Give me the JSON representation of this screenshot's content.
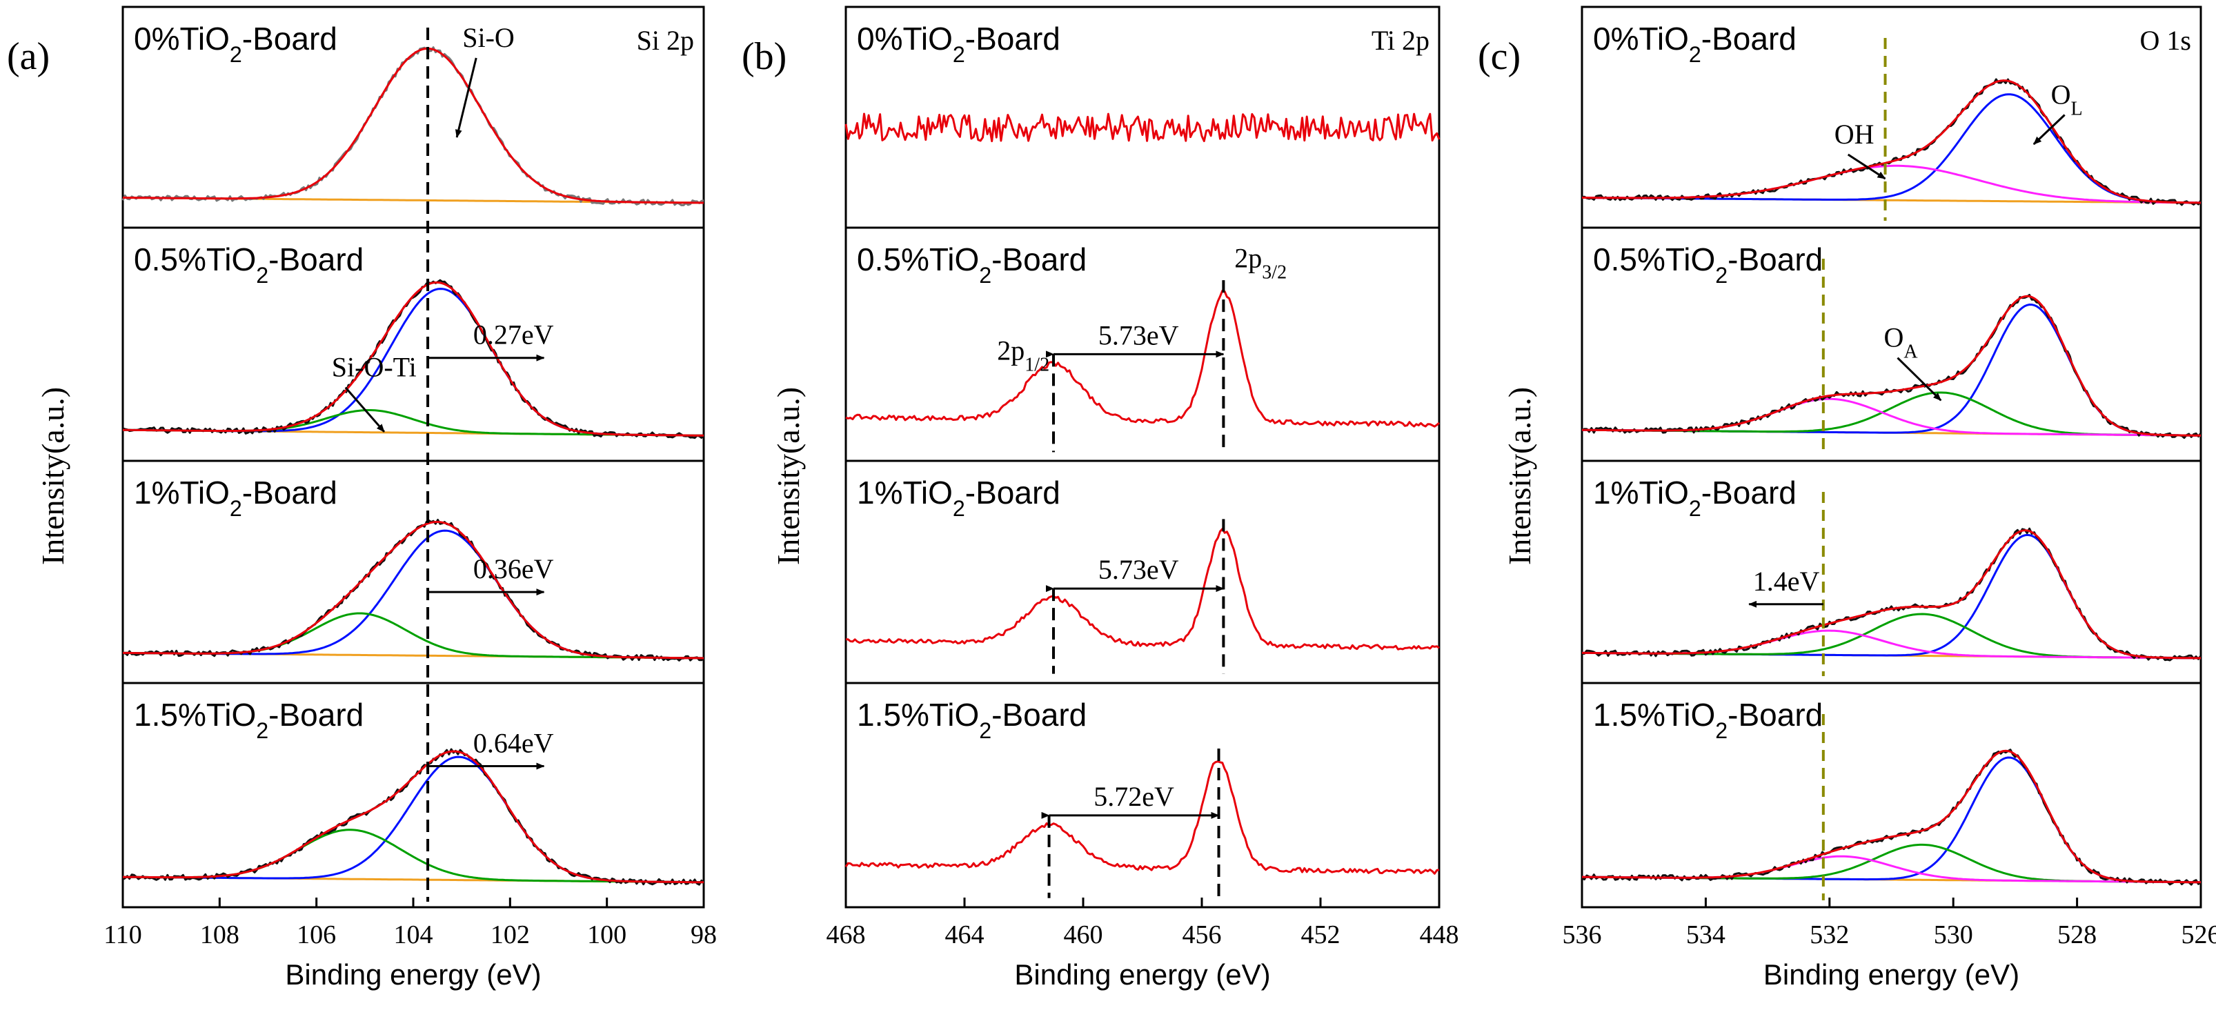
{
  "colors": {
    "raw": "#111111",
    "envelope": "#e8000b",
    "baseline": "#f0a020",
    "blue": "#0010ff",
    "green": "#00a000",
    "magenta": "#ff20ff",
    "olive_dash": "#8a8a00"
  },
  "ylabel": "Intensity(a.u.)",
  "chart_data": [
    {
      "id": "a",
      "type": "line",
      "panel_label": "(a)",
      "spectrum": "Si 2p",
      "xlabel": "Binding energy (eV)",
      "xlim": [
        110,
        98
      ],
      "xticks": [
        110,
        108,
        106,
        104,
        102,
        100,
        98
      ],
      "xtick_labels": [
        "110",
        "108",
        "106",
        "104",
        "102",
        "100",
        "98"
      ],
      "vline_ev": 103.7,
      "samples": [
        {
          "label_pre": "0%TiO",
          "label_sub": "2",
          "label_post": "-Board",
          "components": [
            {
              "name": "Si-O",
              "center": 103.7,
              "height": 0.88,
              "width": 1.1,
              "color": "blue"
            }
          ],
          "show_components": false,
          "raw": "gray",
          "annotations": [
            {
              "text": "Si-O",
              "arrow_from": [
                102.7,
                0.88
              ],
              "arrow_to": [
                103.1,
                0.42
              ]
            }
          ]
        },
        {
          "label_pre": "0.5%TiO",
          "label_sub": "2",
          "label_post": "-Board",
          "components": [
            {
              "center": 103.43,
              "height": 0.78,
              "width": 1.02,
              "color": "blue"
            },
            {
              "center": 104.9,
              "height": 0.12,
              "width": 0.9,
              "color": "green"
            }
          ],
          "show_components": true,
          "raw": "black",
          "shift": {
            "text": "0.27eV",
            "from": 103.7,
            "to": 101.3,
            "y": 0.46
          },
          "annotations": [
            {
              "text": "Si-O-Ti",
              "arrow_from": [
                105.4,
                0.3
              ],
              "arrow_to": [
                104.6,
                0.06
              ]
            }
          ]
        },
        {
          "label_pre": "1%TiO",
          "label_sub": "2",
          "label_post": "-Board",
          "components": [
            {
              "center": 103.34,
              "height": 0.72,
              "width": 1.05,
              "color": "blue"
            },
            {
              "center": 105.1,
              "height": 0.24,
              "width": 0.95,
              "color": "green"
            }
          ],
          "show_components": true,
          "raw": "black",
          "shift": {
            "text": "0.36eV",
            "from": 103.7,
            "to": 101.3,
            "y": 0.42
          }
        },
        {
          "label_pre": "1.5%TiO",
          "label_sub": "2",
          "label_post": "-Board",
          "components": [
            {
              "center": 103.06,
              "height": 0.7,
              "width": 1.0,
              "color": "blue"
            },
            {
              "center": 105.3,
              "height": 0.28,
              "width": 1.05,
              "color": "green"
            }
          ],
          "show_components": true,
          "raw": "black",
          "shift": {
            "text": "0.64eV",
            "from": 103.7,
            "to": 101.3,
            "y": 0.7
          }
        }
      ]
    },
    {
      "id": "b",
      "type": "line",
      "panel_label": "(b)",
      "spectrum": "Ti 2p",
      "xlabel": "Binding energy (eV)",
      "xlim": [
        468,
        448
      ],
      "xticks": [
        468,
        464,
        460,
        456,
        452,
        448
      ],
      "xtick_labels": [
        "468",
        "464",
        "460",
        "456",
        "452",
        "448"
      ],
      "samples": [
        {
          "label_pre": "0%TiO",
          "label_sub": "2",
          "label_post": "-Board",
          "noise_only": true
        },
        {
          "label_pre": "0.5%TiO",
          "label_sub": "2",
          "label_post": "-Board",
          "peaks": [
            {
              "center": 461.0,
              "height": 0.3,
              "width": 0.95
            },
            {
              "center": 455.27,
              "height": 0.7,
              "width": 0.55
            }
          ],
          "shift": {
            "text": "5.73eV",
            "from": 461.0,
            "to": 455.27
          },
          "labels": [
            {
              "text": "2p",
              "sub": "1/2",
              "at": [
                462.9,
                0.45
              ]
            },
            {
              "text": "2p",
              "sub": "3/2",
              "at": [
                454.9,
                0.95
              ]
            }
          ]
        },
        {
          "label_pre": "1%TiO",
          "label_sub": "2",
          "label_post": "-Board",
          "peaks": [
            {
              "center": 461.0,
              "height": 0.26,
              "width": 0.95
            },
            {
              "center": 455.27,
              "height": 0.66,
              "width": 0.55
            }
          ],
          "shift": {
            "text": "5.73eV",
            "from": 461.0,
            "to": 455.27
          }
        },
        {
          "label_pre": "1.5%TiO",
          "label_sub": "2",
          "label_post": "-Board",
          "peaks": [
            {
              "center": 461.15,
              "height": 0.24,
              "width": 0.95
            },
            {
              "center": 455.43,
              "height": 0.62,
              "width": 0.55
            }
          ],
          "shift": {
            "text": "5.72eV",
            "from": 461.15,
            "to": 455.43
          }
        }
      ]
    },
    {
      "id": "c",
      "type": "line",
      "panel_label": "(c)",
      "spectrum": "O 1s",
      "xlabel": "Binding energy (eV)",
      "xlim": [
        536,
        526
      ],
      "xticks": [
        536,
        534,
        532,
        530,
        528,
        526
      ],
      "xtick_labels": [
        "536",
        "534",
        "532",
        "530",
        "528",
        "526"
      ],
      "samples": [
        {
          "label_pre": "0%TiO",
          "label_sub": "2",
          "label_post": "-Board",
          "components": [
            {
              "center": 529.1,
              "height": 0.62,
              "width": 0.75,
              "color": "blue"
            },
            {
              "center": 530.9,
              "height": 0.2,
              "width": 1.3,
              "color": "magenta"
            }
          ],
          "vline_ev": 531.1,
          "annotations": [
            {
              "text": "OH",
              "arrow_from": [
                531.7,
                0.32
              ],
              "arrow_to": [
                531.1,
                0.18
              ]
            },
            {
              "text": "O",
              "sub": "L",
              "arrow_from": [
                528.2,
                0.55
              ],
              "arrow_to": [
                528.7,
                0.38
              ]
            }
          ]
        },
        {
          "label_pre": "0.5%TiO",
          "label_sub": "2",
          "label_post": "-Board",
          "components": [
            {
              "center": 528.75,
              "height": 0.7,
              "width": 0.6,
              "color": "blue"
            },
            {
              "center": 530.2,
              "height": 0.22,
              "width": 0.8,
              "color": "green"
            },
            {
              "center": 532.0,
              "height": 0.18,
              "width": 0.85,
              "color": "magenta"
            }
          ],
          "vline_ev": 532.1,
          "annotations": [
            {
              "text": "O",
              "sub": "A",
              "arrow_from": [
                530.9,
                0.46
              ],
              "arrow_to": [
                530.2,
                0.23
              ]
            }
          ]
        },
        {
          "label_pre": "1%TiO",
          "label_sub": "2",
          "label_post": "-Board",
          "components": [
            {
              "center": 528.8,
              "height": 0.7,
              "width": 0.6,
              "color": "blue"
            },
            {
              "center": 530.5,
              "height": 0.24,
              "width": 0.8,
              "color": "green"
            },
            {
              "center": 532.0,
              "height": 0.14,
              "width": 0.85,
              "color": "magenta"
            }
          ],
          "vline_ev": 532.1,
          "shift": {
            "text": "1.4eV",
            "from": 532.1,
            "to": 533.3,
            "y": 0.35
          }
        },
        {
          "label_pre": "1.5%TiO",
          "label_sub": "2",
          "label_post": "-Board",
          "components": [
            {
              "center": 529.1,
              "height": 0.7,
              "width": 0.6,
              "color": "blue"
            },
            {
              "center": 530.5,
              "height": 0.2,
              "width": 0.75,
              "color": "green"
            },
            {
              "center": 531.8,
              "height": 0.13,
              "width": 0.8,
              "color": "magenta"
            }
          ],
          "vline_ev": 532.1
        }
      ]
    }
  ]
}
